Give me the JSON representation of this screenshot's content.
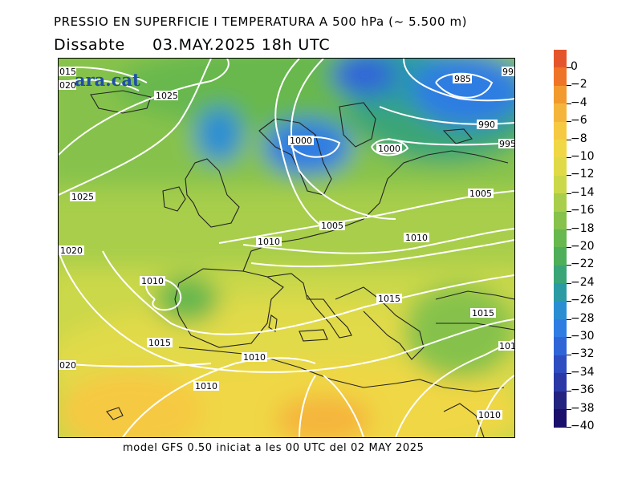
{
  "header": {
    "title": "PRESSIO EN SUPERFICIE I TEMPERATURA A 500 hPa (~ 5.500 m)",
    "day": "Dissabte",
    "run_time": "03.MAY.2025 18h UTC"
  },
  "logo": {
    "text": "ara.cat"
  },
  "footer": {
    "text": "model GFS 0.50 iniciat a les 00 UTC del 02 MAY 2025"
  },
  "legend": {
    "labels": [
      "0",
      "−2",
      "−4",
      "−6",
      "−8",
      "−10",
      "−12",
      "−14",
      "−16",
      "−18",
      "−20",
      "−22",
      "−24",
      "−26",
      "−28",
      "−30",
      "−32",
      "−34",
      "−36",
      "−38",
      "−40"
    ],
    "colors": [
      "#e5552c",
      "#ee7428",
      "#f29a2e",
      "#f5b53c",
      "#f6c943",
      "#f0d745",
      "#e1da48",
      "#cbd84a",
      "#a8ce4b",
      "#86c24c",
      "#67b84e",
      "#4fae5a",
      "#3aa577",
      "#2a9ba3",
      "#2b8ed3",
      "#2f7de3",
      "#3065d8",
      "#2d4dc1",
      "#2a39a6",
      "#22247f",
      "#1a0f6b"
    ]
  },
  "isobars": {
    "labels": [
      {
        "text": "015"
      },
      {
        "text": "020"
      },
      {
        "text": "1025"
      },
      {
        "text": "985"
      },
      {
        "text": "99"
      },
      {
        "text": "990"
      },
      {
        "text": "995"
      },
      {
        "text": "1000"
      },
      {
        "text": "1000"
      },
      {
        "text": "1025"
      },
      {
        "text": "1005"
      },
      {
        "text": "1005"
      },
      {
        "text": "1010"
      },
      {
        "text": "1010"
      },
      {
        "text": "1020"
      },
      {
        "text": "1010"
      },
      {
        "text": "1015"
      },
      {
        "text": "1015"
      },
      {
        "text": "1015"
      },
      {
        "text": "101"
      },
      {
        "text": "1010"
      },
      {
        "text": "020"
      },
      {
        "text": "1010"
      },
      {
        "text": "1010"
      }
    ]
  }
}
